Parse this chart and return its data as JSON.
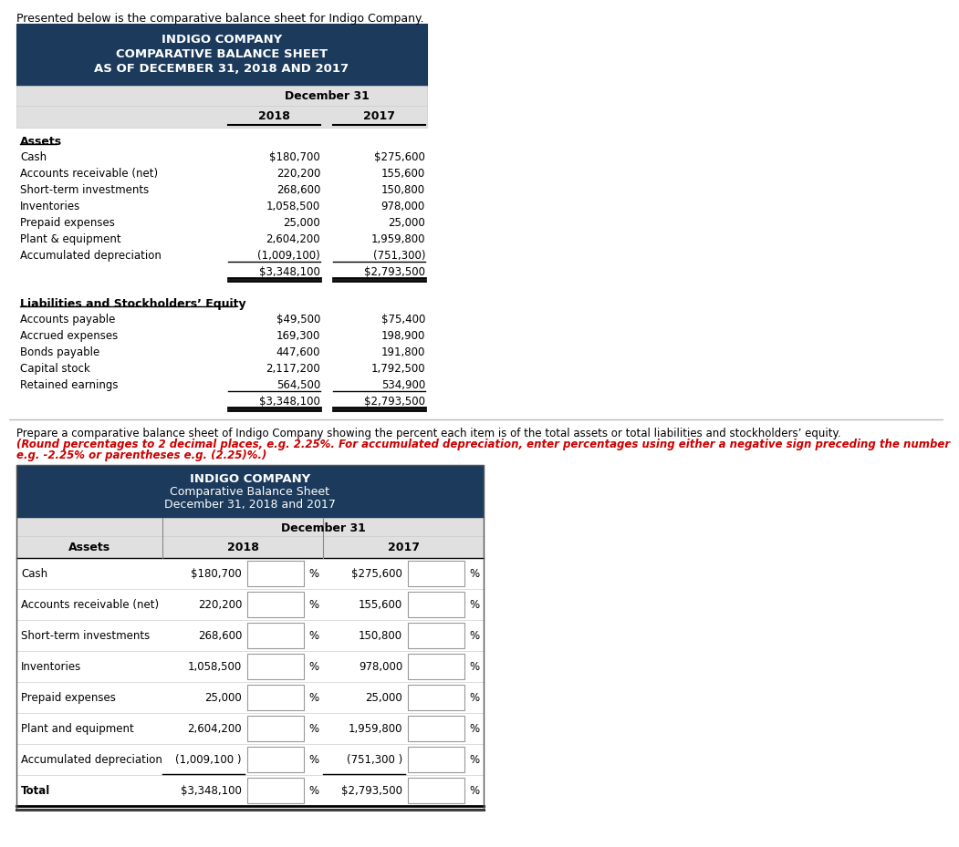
{
  "intro_text": "Presented below is the comparative balance sheet for Indigo Company.",
  "table1_title": [
    "INDIGO COMPANY",
    "COMPARATIVE BALANCE SHEET",
    "AS OF DECEMBER 31, 2018 AND 2017"
  ],
  "table1_years": [
    "2018",
    "2017"
  ],
  "assets_label": "Assets",
  "assets_rows": [
    [
      "Cash",
      "$180,700",
      "$275,600"
    ],
    [
      "Accounts receivable (net)",
      "220,200",
      "155,600"
    ],
    [
      "Short-term investments",
      "268,600",
      "150,800"
    ],
    [
      "Inventories",
      "1,058,500",
      "978,000"
    ],
    [
      "Prepaid expenses",
      "25,000",
      "25,000"
    ],
    [
      "Plant & equipment",
      "2,604,200",
      "1,959,800"
    ],
    [
      "Accumulated depreciation",
      "(1,009,100)",
      "(751,300)"
    ],
    [
      "",
      "$3,348,100",
      "$2,793,500"
    ]
  ],
  "liabilities_label": "Liabilities and Stockholders’ Equity",
  "liabilities_rows": [
    [
      "Accounts payable",
      "$49,500",
      "$75,400"
    ],
    [
      "Accrued expenses",
      "169,300",
      "198,900"
    ],
    [
      "Bonds payable",
      "447,600",
      "191,800"
    ],
    [
      "Capital stock",
      "2,117,200",
      "1,792,500"
    ],
    [
      "Retained earnings",
      "564,500",
      "534,900"
    ],
    [
      "",
      "$3,348,100",
      "$2,793,500"
    ]
  ],
  "divider_line1": "Prepare a comparative balance sheet of Indigo Company showing the percent each item is of the total assets or total liabilities and stockholders’ equity.",
  "divider_line2": "(Round percentages to 2 decimal places, e.g. 2.25%. For accumulated depreciation, enter percentages using either a negative sign preceding the number",
  "divider_line3": "e.g. -2.25% or parentheses e.g. (2.25)%.)",
  "table2_title": [
    "INDIGO COMPANY",
    "Comparative Balance Sheet",
    "December 31, 2018 and 2017"
  ],
  "table2_years": [
    "2018",
    "2017"
  ],
  "table2_assets_rows": [
    [
      "Cash",
      "$180,700",
      "$275,600"
    ],
    [
      "Accounts receivable (net)",
      "220,200",
      "155,600"
    ],
    [
      "Short-term investments",
      "268,600",
      "150,800"
    ],
    [
      "Inventories",
      "1,058,500",
      "978,000"
    ],
    [
      "Prepaid expenses",
      "25,000",
      "25,000"
    ],
    [
      "Plant and equipment",
      "2,604,200",
      "1,959,800"
    ],
    [
      "Accumulated depreciation",
      "(1,009,100 )",
      "(751,300 )"
    ],
    [
      "Total",
      "$3,348,100",
      "$2,793,500"
    ]
  ],
  "header_bg": "#1b3a5c",
  "subheader_bg": "#e0e0e0",
  "white": "#ffffff",
  "black": "#000000",
  "red": "#cc0000",
  "gray_line": "#aaaaaa",
  "box_border": "#999999"
}
